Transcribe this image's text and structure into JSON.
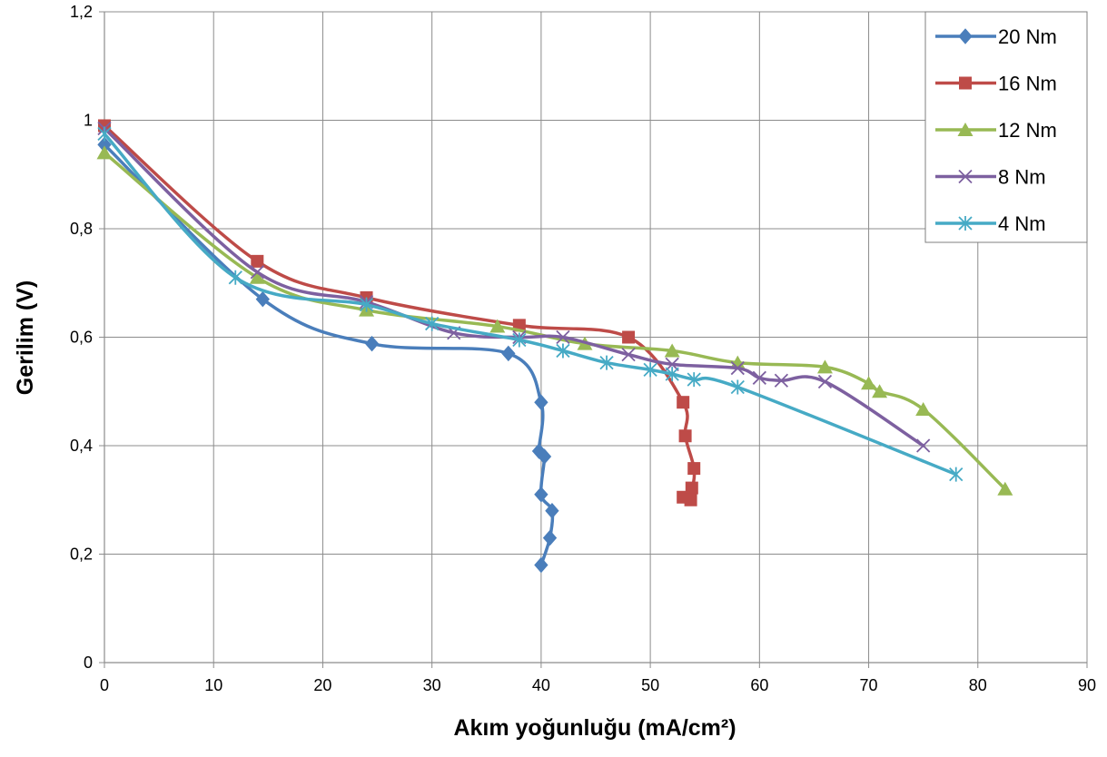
{
  "chart_data": {
    "type": "scatter",
    "xlabel": "Akım yoğunluğu (mA/cm²)",
    "ylabel": "Gerilim (V)",
    "xlim": [
      0,
      90
    ],
    "ylim": [
      0,
      1.2
    ],
    "x_ticks": [
      "0",
      "10",
      "20",
      "30",
      "40",
      "50",
      "60",
      "70",
      "80",
      "90"
    ],
    "y_ticks": [
      "0",
      "0,2",
      "0,4",
      "0,6",
      "0,8",
      "1",
      "1,2"
    ],
    "grid": true,
    "legend_position": "top-right",
    "series": [
      {
        "name": "20 Nm",
        "color": "#4a7ebb",
        "marker": "diamond",
        "x": [
          0,
          14.5,
          24.5,
          37,
          40,
          39.8,
          40.3,
          40,
          41,
          40.8,
          40
        ],
        "y": [
          0.955,
          0.67,
          0.588,
          0.57,
          0.48,
          0.39,
          0.38,
          0.31,
          0.28,
          0.23,
          0.18
        ]
      },
      {
        "name": "16 Nm",
        "color": "#be4b48",
        "marker": "square",
        "x": [
          0,
          14,
          24,
          38,
          48,
          53,
          53.2,
          54,
          53.8,
          53,
          53.7
        ],
        "y": [
          0.99,
          0.74,
          0.673,
          0.622,
          0.6,
          0.48,
          0.418,
          0.358,
          0.322,
          0.305,
          0.3
        ]
      },
      {
        "name": "12 Nm",
        "color": "#98b954",
        "marker": "triangle",
        "x": [
          0,
          14,
          24,
          36,
          44,
          52,
          58,
          66,
          70,
          71,
          75,
          82.5
        ],
        "y": [
          0.94,
          0.71,
          0.65,
          0.62,
          0.588,
          0.575,
          0.553,
          0.545,
          0.515,
          0.5,
          0.467,
          0.32
        ]
      },
      {
        "name": "8 Nm",
        "color": "#7d60a0",
        "marker": "x",
        "x": [
          0,
          14,
          24,
          32,
          38,
          42,
          48,
          52,
          58,
          60,
          62,
          66,
          75
        ],
        "y": [
          0.985,
          0.72,
          0.665,
          0.608,
          0.6,
          0.6,
          0.568,
          0.55,
          0.543,
          0.525,
          0.52,
          0.518,
          0.4
        ]
      },
      {
        "name": "4 Nm",
        "color": "#46aac5",
        "marker": "asterisk",
        "x": [
          0,
          12,
          24,
          30,
          38,
          42,
          46,
          50,
          52,
          54,
          58,
          78
        ],
        "y": [
          0.975,
          0.71,
          0.66,
          0.625,
          0.595,
          0.575,
          0.553,
          0.54,
          0.532,
          0.522,
          0.508,
          0.347
        ]
      }
    ]
  }
}
